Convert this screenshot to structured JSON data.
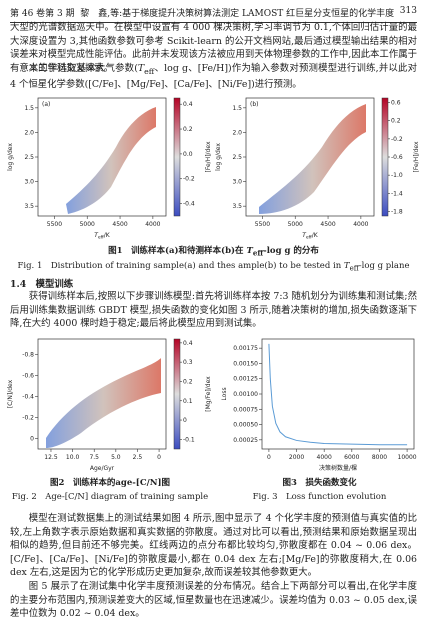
{
  "header": {
    "left": "第 46 卷第 3 期",
    "center": "黎　鑫,等:基于梯度提升决策树算法测定 LAMOST 红巨星分支恒星的化学丰度",
    "page": "313"
  },
  "paragraphs": {
    "p1": "大型的光谱数据巡天中。在模型中设置有 4 000 棵决策树,学习率调节为 0.1,个体回归估计量的最大深度设置为 3,其他函数参数可参考 Scikit-learn 的公开文档网站,最后通过模型输出结果的相对误差来对模型完成性能评估。此前并未发现该方法被应用到天体物理参数的工作中,因此本工作属于有意义的学科交叉探索。",
    "p2": {
      "a": "本工作选取基本大气参数(",
      "t": "T",
      "sub": "eff",
      "b": "、log g、[Fe/H])作为输入参数对预测模型进行训练,并以此对 4 个恒星化学参数([C/Fe]、[Mg/Fe]、[Ca/Fe]、[Ni/Fe])进行预测。"
    },
    "section": "1.4　模型训练",
    "p3": "获得训练样本后,按照以下步骤训练模型:首先将训练样本按 7:3 随机划分为训练集和测试集;然后用训练集数据训练 GBDT 模型,损失函数的变化如图 3 所示,随着决策树的增加,损失函数逐渐下降,在大约 4000 棵时趋于稳定;最后将此模型应用到测试集。",
    "p4": "模型在测试数据集上的测试结果如图 4 所示,图中显示了 4 个化学丰度的预测值与真实值的比较,左上角数字表示原始数据和真实数据的弥散度。通过对比可以看出,预测结果和原始数据呈现出相似的趋势,但目前还不够完美。红线两边的点分布都比较均匀,弥散度都在 0.04 ~ 0.06 dex。[C/Fe]、[Ca/Fe]、[Ni/Fe]的弥散度最小,都在 0.04 dex 左右;[Mg/Fe]的弥散度稍大,在 0.06 dex 左右,这是因为它的化学形成历史更加复杂,故而误差较其他参数更大。",
    "p5": "图 5 展示了在测试集中化学丰度预测误差的分布情况。结合上下两部分可以看出,在化学丰度的主要分布范围内,预测误差变大的区域,恒星数量也在迅速减少。误差均值为 0.03 ~ 0.05 dex,误差中位数为 0.02 ~ 0.04 dex。"
  },
  "captions": {
    "fig1_cn": {
      "a": "图1　训练样本(a)和待测样本(b)在 ",
      "t": "T",
      "sub": "eff",
      "b": "-log g 的分布"
    },
    "fig1_en": {
      "a": "Fig. 1　Distribution of training sample(a) and thes ample(b) to be tested in ",
      "t": "T",
      "sub": "eff",
      "b": "-log g plane"
    },
    "fig2_cn": "图2　训练样本的age-[C/N]图",
    "fig2_en": "Fig. 2　Age-[C/N] diagram of training sample",
    "fig3_cn": "图3　损失函数变化",
    "fig3_en": "Fig. 3　Loss function evolution"
  },
  "figures": [
    {
      "panel": "(a)",
      "ylabel": "log g/dex",
      "xlabel": {
        "t": "T",
        "sub": "eff",
        "b": "/K"
      },
      "cblabel": "[Fe/H]/dex",
      "xlim": [
        5750,
        3800
      ],
      "ylim": [
        3.7,
        1.3
      ],
      "clim": [
        -0.5,
        0.45
      ],
      "xticks": [
        5500,
        5000,
        4500,
        4000
      ],
      "yticks": [
        1.5,
        {
          "value": 2,
          "label": "2.0"
        },
        2.5,
        {
          "value": 3,
          "label": "3.0"
        },
        3.5
      ],
      "cticks": [
        0.4,
        0.2,
        {
          "value": 0,
          "label": "0.0"
        },
        -0.2,
        -0.4
      ]
    },
    {
      "panel": "(b)",
      "ylabel": "log g/dex",
      "xlabel": {
        "t": "T",
        "sub": "eff",
        "b": "/K"
      },
      "cblabel": "[Fe/H]/dex",
      "xlim": [
        5750,
        3800
      ],
      "ylim": [
        3.7,
        1.3
      ],
      "clim": [
        -1.9,
        0.7
      ],
      "xticks": [
        5500,
        5000,
        4500,
        4000
      ],
      "yticks": [
        1.5,
        {
          "value": 2,
          "label": "2.0"
        },
        2.5,
        {
          "value": 3,
          "label": "3.0"
        },
        3.5
      ],
      "cticks": [
        0.6,
        0.2,
        -0.2,
        -0.6,
        {
          "value": -1,
          "label": "-1.0"
        },
        -1.4,
        -1.8
      ]
    },
    {
      "ylabel": "[C/N]/dex",
      "xlabel": {
        "b": "Age/Gyr"
      },
      "cblabel": "[Mg/Fe]/dex",
      "xlim": [
        14,
        -0.8
      ],
      "ylim": [
        0.1,
        -0.95
      ],
      "clim": [
        -0.15,
        0.42
      ],
      "xticks": [
        12.5,
        {
          "value": 10,
          "label": "10.0"
        },
        7.5,
        {
          "value": 5,
          "label": "5.0"
        },
        2.5,
        0
      ],
      "yticks": [
        -0.8,
        -0.6,
        -0.4,
        -0.2,
        0
      ],
      "cticks": [
        0.4,
        0.3,
        0.2,
        0.1,
        0,
        -0.1
      ]
    },
    {
      "ylabel": "Loss",
      "xlabel": {
        "b": "决策树数量/棵"
      },
      "xlim": [
        -500,
        10500
      ],
      "ylim": [
        0.0001,
        0.0019
      ],
      "xticks": [
        0,
        2000,
        4000,
        6000,
        8000,
        10000
      ],
      "yticks": [
        0.00175,
        {
          "value": 0.0015,
          "label": "0.00150"
        },
        0.00125,
        {
          "value": 0.001,
          "label": "0.00100"
        },
        0.00075,
        {
          "value": 0.0005,
          "label": "0.00050"
        },
        0.00025
      ],
      "x": [
        0,
        100,
        250,
        500,
        800,
        1200,
        2000,
        3000,
        4000,
        6000,
        8000,
        10000
      ],
      "y": [
        0.00182,
        0.00125,
        0.0008,
        0.00052,
        0.00038,
        0.0003,
        0.00024,
        0.00021,
        0.00019,
        0.00018,
        0.00017,
        0.00017
      ]
    }
  ]
}
